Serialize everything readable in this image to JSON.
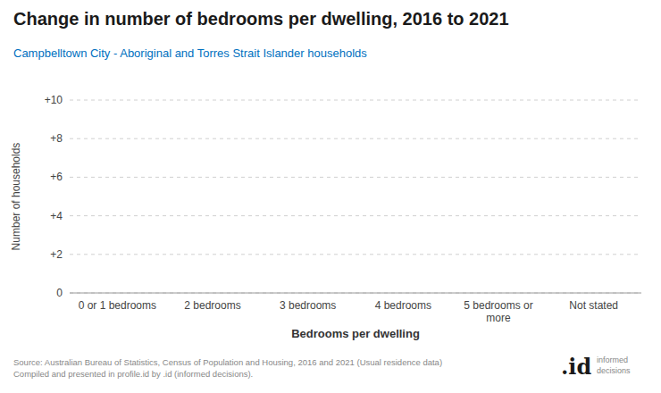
{
  "chart_data": {
    "type": "bar",
    "title": "Change in number of bedrooms per dwelling, 2016 to 2021",
    "subtitle": "Campbelltown City - Aboriginal and Torres Strait Islander households",
    "x_label": "Bedrooms per dwelling",
    "y_label": "Number of households",
    "categories": [
      "0 or 1 bedrooms",
      "2 bedrooms",
      "3 bedrooms",
      "4 bedrooms",
      "5 bedrooms or\nmore",
      "Not stated"
    ],
    "values": [
      0,
      0,
      0,
      0,
      0,
      0
    ],
    "color": "#4472c4",
    "ylim": [
      0,
      10
    ],
    "yticks": [
      0,
      {
        "value": 2,
        "label": "+2"
      },
      {
        "value": 4,
        "label": "+4"
      },
      {
        "value": 6,
        "label": "+6"
      },
      {
        "value": 8,
        "label": "+8"
      },
      {
        "value": 10,
        "label": "+10"
      }
    ],
    "grid": true,
    "source": "Source: Australian Bureau of Statistics, Census of Population and Housing, 2016 and 2021 (Usual residence data)\nCompiled and presented in profile.id by .id (informed decisions).",
    "annotations": [
      ".id",
      "informed\ndecisions"
    ]
  }
}
